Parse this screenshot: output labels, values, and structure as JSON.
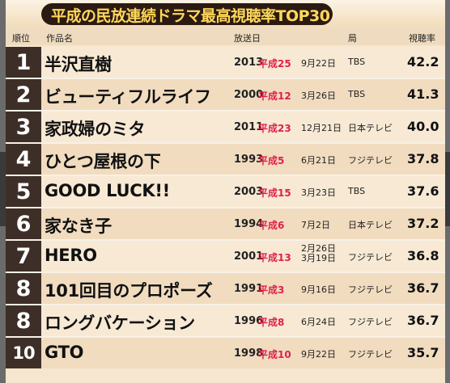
{
  "title": "平成の民放連続ドラマ最高視聴率TOP30",
  "headers": {
    "rank": "順位",
    "title": "作品名",
    "airdate": "放送日",
    "station": "局",
    "rating": "視聴率"
  },
  "rows": [
    {
      "rank": "1",
      "title": "半沢直樹",
      "year": "2013",
      "era": "平成25",
      "date": "9月22日",
      "station": "TBS",
      "rating": "42.2"
    },
    {
      "rank": "2",
      "title": "ビューティフルライフ",
      "year": "2000",
      "era": "平成12",
      "date": "3月26日",
      "station": "TBS",
      "rating": "41.3"
    },
    {
      "rank": "3",
      "title": "家政婦のミタ",
      "year": "2011",
      "era": "平成23",
      "date": "12月21日",
      "station": "日本テレビ",
      "rating": "40.0"
    },
    {
      "rank": "4",
      "title": "ひとつ屋根の下",
      "year": "1993",
      "era": "平成5",
      "date": "6月21日",
      "station": "フジテレビ",
      "rating": "37.8"
    },
    {
      "rank": "5",
      "title": "GOOD LUCK!!",
      "year": "2003",
      "era": "平成15",
      "date": "3月23日",
      "station": "TBS",
      "rating": "37.6"
    },
    {
      "rank": "6",
      "title": "家なき子",
      "year": "1994",
      "era": "平成6",
      "date": "7月2日",
      "station": "日本テレビ",
      "rating": "37.2"
    },
    {
      "rank": "7",
      "title": "HERO",
      "year": "2001",
      "era": "平成13",
      "date": "2月26日",
      "date2": "3月19日",
      "station": "フジテレビ",
      "rating": "36.8"
    },
    {
      "rank": "8",
      "title": "101回目のプロポーズ",
      "year": "1991",
      "era": "平成3",
      "date": "9月16日",
      "station": "フジテレビ",
      "rating": "36.7"
    },
    {
      "rank": "8",
      "title": "ロングバケーション",
      "year": "1996",
      "era": "平成8",
      "date": "6月24日",
      "station": "フジテレビ",
      "rating": "36.7"
    },
    {
      "rank": "10",
      "title": "GTO",
      "year": "1998",
      "era": "平成10",
      "date": "9月22日",
      "station": "フジテレビ",
      "rating": "35.7"
    }
  ]
}
